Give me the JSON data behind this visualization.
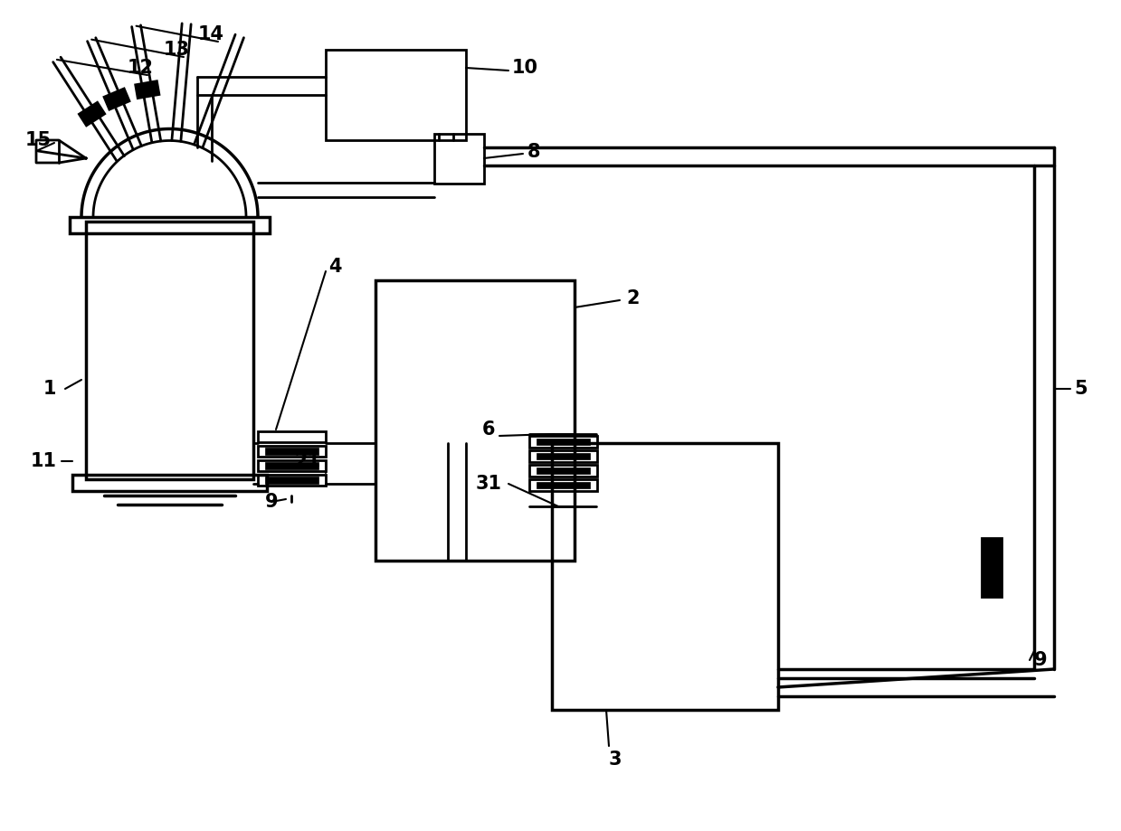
{
  "bg_color": "#ffffff",
  "line_color": "#000000",
  "lw": 2.0,
  "tlw": 2.5,
  "fs": 15,
  "figsize": [
    12.39,
    9.19
  ],
  "dpi": 100
}
